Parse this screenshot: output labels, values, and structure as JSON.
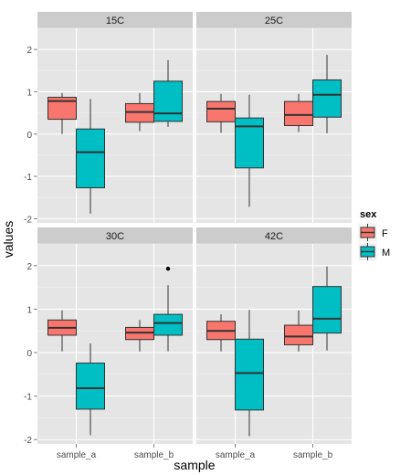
{
  "chart_data": {
    "type": "boxplot",
    "xlabel": "sample",
    "ylabel": "values",
    "categories": [
      "sample_a",
      "sample_b"
    ],
    "ylim": [
      -2.1,
      2.5
    ],
    "yticks": [
      -2,
      -1,
      0,
      1,
      2
    ],
    "grid": true,
    "legend": {
      "title": "sex",
      "position": "right",
      "entries": [
        {
          "key": "F",
          "label": "F",
          "color": "#F8766D"
        },
        {
          "key": "M",
          "label": "M",
          "color": "#00BFC4"
        }
      ]
    },
    "facets": [
      {
        "label": "15C",
        "boxes": [
          {
            "category": "sample_a",
            "group": "F",
            "min": 0.0,
            "q1": 0.35,
            "median": 0.78,
            "q3": 0.87,
            "max": 0.97,
            "outliers": []
          },
          {
            "category": "sample_a",
            "group": "M",
            "min": -1.88,
            "q1": -1.27,
            "median": -0.43,
            "q3": 0.12,
            "max": 0.83,
            "outliers": []
          },
          {
            "category": "sample_b",
            "group": "F",
            "min": 0.07,
            "q1": 0.28,
            "median": 0.52,
            "q3": 0.72,
            "max": 0.97,
            "outliers": []
          },
          {
            "category": "sample_b",
            "group": "M",
            "min": 0.17,
            "q1": 0.3,
            "median": 0.49,
            "q3": 1.25,
            "max": 1.75,
            "outliers": []
          }
        ]
      },
      {
        "label": "25C",
        "boxes": [
          {
            "category": "sample_a",
            "group": "F",
            "min": 0.03,
            "q1": 0.29,
            "median": 0.6,
            "q3": 0.77,
            "max": 0.95,
            "outliers": []
          },
          {
            "category": "sample_a",
            "group": "M",
            "min": -1.72,
            "q1": -0.8,
            "median": 0.18,
            "q3": 0.38,
            "max": 0.93,
            "outliers": []
          },
          {
            "category": "sample_b",
            "group": "F",
            "min": 0.05,
            "q1": 0.2,
            "median": 0.45,
            "q3": 0.77,
            "max": 0.95,
            "outliers": []
          },
          {
            "category": "sample_b",
            "group": "M",
            "min": 0.02,
            "q1": 0.4,
            "median": 0.93,
            "q3": 1.28,
            "max": 1.87,
            "outliers": []
          }
        ]
      },
      {
        "label": "30C",
        "boxes": [
          {
            "category": "sample_a",
            "group": "F",
            "min": 0.03,
            "q1": 0.4,
            "median": 0.57,
            "q3": 0.75,
            "max": 0.97,
            "outliers": []
          },
          {
            "category": "sample_a",
            "group": "M",
            "min": -1.9,
            "q1": -1.3,
            "median": -0.82,
            "q3": -0.24,
            "max": 0.21,
            "outliers": []
          },
          {
            "category": "sample_b",
            "group": "F",
            "min": 0.03,
            "q1": 0.3,
            "median": 0.46,
            "q3": 0.58,
            "max": 0.75,
            "outliers": []
          },
          {
            "category": "sample_b",
            "group": "M",
            "min": 0.03,
            "q1": 0.4,
            "median": 0.68,
            "q3": 0.88,
            "max": 1.55,
            "outliers": [
              1.93
            ]
          }
        ]
      },
      {
        "label": "42C",
        "boxes": [
          {
            "category": "sample_a",
            "group": "F",
            "min": 0.03,
            "q1": 0.3,
            "median": 0.5,
            "q3": 0.72,
            "max": 0.88,
            "outliers": []
          },
          {
            "category": "sample_a",
            "group": "M",
            "min": -1.92,
            "q1": -1.32,
            "median": -0.47,
            "q3": 0.31,
            "max": 0.98,
            "outliers": []
          },
          {
            "category": "sample_b",
            "group": "F",
            "min": 0.03,
            "q1": 0.18,
            "median": 0.37,
            "q3": 0.63,
            "max": 0.97,
            "outliers": []
          },
          {
            "category": "sample_b",
            "group": "M",
            "min": 0.05,
            "q1": 0.45,
            "median": 0.78,
            "q3": 1.52,
            "max": 1.98,
            "outliers": []
          }
        ]
      }
    ]
  }
}
